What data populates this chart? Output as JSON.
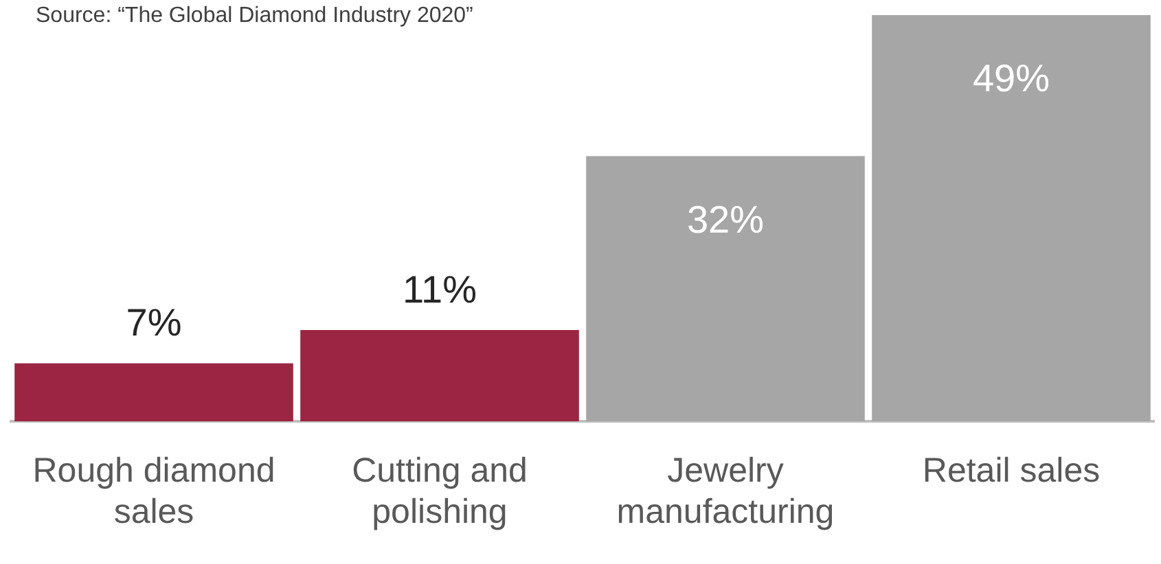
{
  "chart_data": {
    "type": "bar",
    "categories": [
      "Rough diamond sales",
      "Cutting and polishing",
      "Jewelry manufacturing",
      "Retail sales"
    ],
    "values": [
      7,
      11,
      32,
      49
    ],
    "colors": [
      "#9b2542",
      "#9b2542",
      "#a6a6a6",
      "#a6a6a6"
    ],
    "value_labels": [
      "7%",
      "11%",
      "32%",
      "49%"
    ],
    "annotations": [
      "Source: “The Global Diamond Industry 2020”"
    ]
  }
}
